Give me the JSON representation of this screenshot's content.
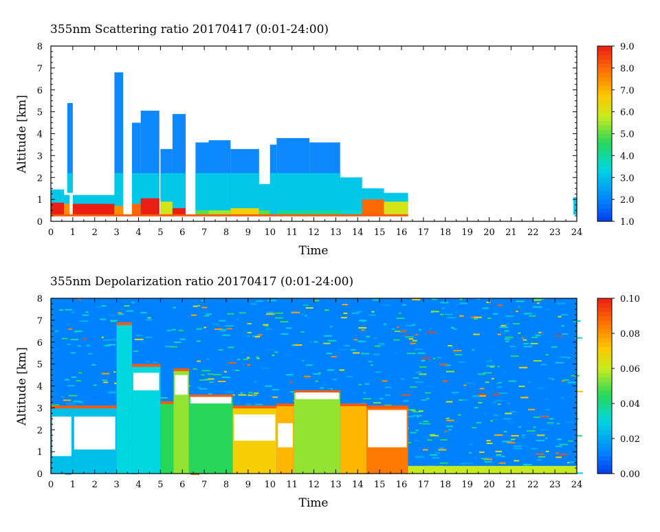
{
  "chart_data": [
    {
      "type": "heatmap",
      "title": "355nm Scattering ratio  20170417 (0:01-24:00)",
      "xlabel": "Time",
      "ylabel": "Altitude [km]",
      "xlim": [
        0,
        24
      ],
      "ylim": [
        0,
        8
      ],
      "x_ticks": [
        "0",
        "1",
        "2",
        "3",
        "4",
        "5",
        "6",
        "7",
        "8",
        "9",
        "10",
        "11",
        "12",
        "13",
        "14",
        "15",
        "16",
        "17",
        "18",
        "19",
        "20",
        "21",
        "22",
        "23",
        "24"
      ],
      "y_ticks": [
        "0",
        "1",
        "2",
        "3",
        "4",
        "5",
        "6",
        "7",
        "8"
      ],
      "colorbar": {
        "min": 1.0,
        "max": 9.0,
        "ticks": [
          "1.0",
          "2.0",
          "3.0",
          "4.0",
          "5.0",
          "6.0",
          "7.0",
          "8.0",
          "9.0"
        ]
      },
      "columns": [
        {
          "x": [
            0.0,
            0.6
          ],
          "top": 1.45,
          "base": 0.3,
          "core": 0.85,
          "core_val": 9.0
        },
        {
          "x": [
            0.6,
            0.85
          ],
          "top": 1.2,
          "base": 0.3,
          "core": 0.8,
          "core_val": 7.5
        },
        {
          "x": [
            0.75,
            1.0
          ],
          "top": 5.4,
          "base": 1.3,
          "core": 0,
          "core_val": 3.5
        },
        {
          "x": [
            1.0,
            2.9
          ],
          "top": 1.2,
          "base": 0.3,
          "core": 0.8,
          "core_val": 9.0
        },
        {
          "x": [
            2.9,
            3.3
          ],
          "top": 6.8,
          "base": 0.3,
          "core": 0.7,
          "core_val": 7.5
        },
        {
          "x": [
            3.7,
            4.1
          ],
          "top": 4.5,
          "base": 0.3,
          "core": 0.8,
          "core_val": 8.0
        },
        {
          "x": [
            4.1,
            4.95
          ],
          "top": 5.05,
          "base": 0.3,
          "core": 1.05,
          "core_val": 9.0
        },
        {
          "x": [
            5.0,
            5.55
          ],
          "top": 3.3,
          "base": 0.3,
          "core": 0.9,
          "core_val": 6.0
        },
        {
          "x": [
            5.55,
            6.15
          ],
          "top": 4.9,
          "base": 0.3,
          "core": 0.6,
          "core_val": 9.0
        },
        {
          "x": [
            6.6,
            7.2
          ],
          "top": 3.6,
          "base": 0.3,
          "core": 0.5,
          "core_val": 5.0
        },
        {
          "x": [
            7.2,
            8.2
          ],
          "top": 3.7,
          "base": 0.3,
          "core": 0.5,
          "core_val": 5.5
        },
        {
          "x": [
            8.2,
            9.5
          ],
          "top": 3.3,
          "base": 0.3,
          "core": 0.6,
          "core_val": 6.5
        },
        {
          "x": [
            9.5,
            10.0
          ],
          "top": 1.7,
          "base": 0.3,
          "core": 0.5,
          "core_val": 5.0
        },
        {
          "x": [
            10.0,
            10.3
          ],
          "top": 3.5,
          "base": 0.3,
          "core": 0,
          "core_val": 2.5
        },
        {
          "x": [
            10.3,
            11.8
          ],
          "top": 3.8,
          "base": 0.3,
          "core": 0.5,
          "core_val": 4.0
        },
        {
          "x": [
            11.8,
            13.2
          ],
          "top": 3.6,
          "base": 0.3,
          "core": 0.5,
          "core_val": 4.0
        },
        {
          "x": [
            13.2,
            14.2
          ],
          "top": 2.0,
          "base": 0.3,
          "core": 0.5,
          "core_val": 3.5
        },
        {
          "x": [
            14.2,
            15.2
          ],
          "top": 1.5,
          "base": 0.3,
          "core": 1.0,
          "core_val": 8.0
        },
        {
          "x": [
            15.2,
            16.3
          ],
          "top": 1.3,
          "base": 0.25,
          "core": 0.9,
          "core_val": 6.0
        },
        {
          "x": [
            23.85,
            24.0
          ],
          "top": 1.1,
          "base": 0.3,
          "core": 0,
          "core_val": 2.0
        }
      ]
    },
    {
      "type": "heatmap",
      "title": "355nm Depolarization ratio  20170417 (0:01-24:00)",
      "xlabel": "Time",
      "ylabel": "Altitude [km]",
      "xlim": [
        0,
        24
      ],
      "ylim": [
        0,
        8
      ],
      "x_ticks": [
        "0",
        "1",
        "2",
        "3",
        "4",
        "5",
        "6",
        "7",
        "8",
        "9",
        "10",
        "11",
        "12",
        "13",
        "14",
        "15",
        "16",
        "17",
        "18",
        "19",
        "20",
        "21",
        "22",
        "23",
        "24"
      ],
      "y_ticks": [
        "0",
        "1",
        "2",
        "3",
        "4",
        "5",
        "6",
        "7",
        "8"
      ],
      "colorbar": {
        "min": 0.0,
        "max": 0.1,
        "ticks": [
          "0.00",
          "0.02",
          "0.04",
          "0.06",
          "0.08",
          "0.10"
        ]
      },
      "columns": [
        {
          "x": [
            0.0,
            1.0
          ],
          "top": 3.1,
          "base": 0.0,
          "val": 0.025,
          "white": [
            0.8,
            2.6
          ]
        },
        {
          "x": [
            1.0,
            3.0
          ],
          "top": 3.1,
          "base": 0.0,
          "val": 0.025,
          "white": [
            1.1,
            2.6
          ]
        },
        {
          "x": [
            3.0,
            3.7
          ],
          "top": 6.9,
          "base": 0.0,
          "val": 0.03,
          "white": null
        },
        {
          "x": [
            3.7,
            5.0
          ],
          "top": 5.0,
          "base": 0.0,
          "val": 0.03,
          "white": [
            3.8,
            4.6
          ]
        },
        {
          "x": [
            5.0,
            5.6
          ],
          "top": 3.3,
          "base": 0.0,
          "val": 0.045,
          "white": null
        },
        {
          "x": [
            5.6,
            6.3
          ],
          "top": 4.8,
          "base": 0.0,
          "val": 0.055,
          "white": [
            3.6,
            4.5
          ]
        },
        {
          "x": [
            6.3,
            8.3
          ],
          "top": 3.6,
          "base": 0.0,
          "val": 0.045,
          "white": [
            3.2,
            3.5
          ]
        },
        {
          "x": [
            8.3,
            10.3
          ],
          "top": 3.1,
          "base": 0.0,
          "val": 0.07,
          "white": [
            1.5,
            2.7
          ]
        },
        {
          "x": [
            10.3,
            11.1
          ],
          "top": 3.2,
          "base": 0.0,
          "val": 0.075,
          "white": [
            1.2,
            2.3
          ]
        },
        {
          "x": [
            11.1,
            13.2
          ],
          "top": 3.8,
          "base": 0.0,
          "val": 0.055,
          "white": [
            3.4,
            3.7
          ]
        },
        {
          "x": [
            13.2,
            14.4
          ],
          "top": 3.2,
          "base": 0.0,
          "val": 0.075,
          "white": null
        },
        {
          "x": [
            14.4,
            16.3
          ],
          "top": 3.1,
          "base": 0.0,
          "val": 0.085,
          "white": [
            1.2,
            2.9
          ]
        }
      ],
      "background_val": 0.012,
      "surface_val": 0.06
    }
  ]
}
